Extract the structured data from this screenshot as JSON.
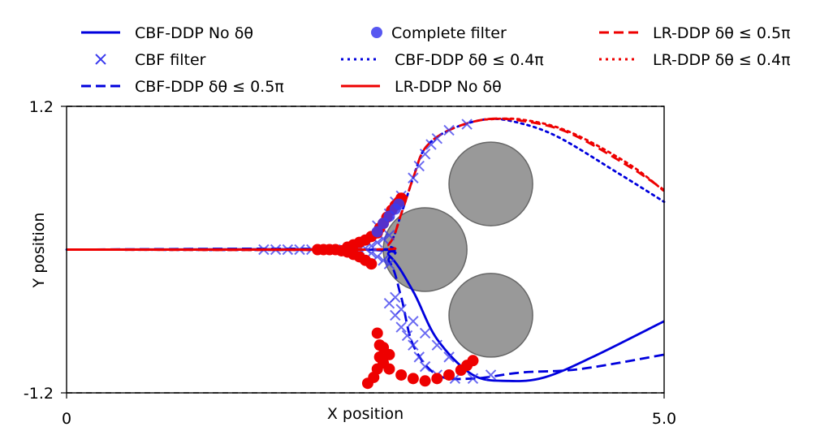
{
  "chart_data": {
    "type": "line",
    "title": "",
    "xlabel": "X position",
    "ylabel": "Y position",
    "xlim": [
      0,
      5.0
    ],
    "ylim": [
      -1.2,
      1.2
    ],
    "x_tick_labels": [
      "0",
      "5.0"
    ],
    "y_tick_labels": [
      "1.2",
      "-1.2"
    ],
    "grid": false,
    "legend_placement": "top",
    "colors": {
      "cbf": "#0000dd",
      "lr": "#ee0000",
      "obstacle": "#999999",
      "boundary": "#000000"
    },
    "boundaries": [
      1.2,
      -1.2
    ],
    "obstacles": [
      {
        "cx": 3.55,
        "cy": 0.55,
        "r": 0.35
      },
      {
        "cx": 3.0,
        "cy": 0.0,
        "r": 0.35
      },
      {
        "cx": 3.55,
        "cy": -0.55,
        "r": 0.35
      }
    ],
    "series": [
      {
        "name": "CBF-DDP No δθ",
        "color": "#0000dd",
        "style": "solid",
        "points": [
          [
            0,
            0
          ],
          [
            2.5,
            0
          ],
          [
            2.9,
            -0.02
          ],
          [
            2.5,
            0.0
          ]
        ]
      },
      {
        "name": "CBF filter",
        "color": "#3a3aee",
        "style": "marker-x"
      },
      {
        "name": "CBF-DDP δθ ≤ 0.5π",
        "color": "#0000dd",
        "style": "dashed"
      },
      {
        "name": "Complete filter",
        "color": "#3a3aee",
        "style": "marker-o"
      },
      {
        "name": "CBF-DDP δθ ≤ 0.4π",
        "color": "#0000dd",
        "style": "dotted"
      },
      {
        "name": "LR-DDP No δθ",
        "color": "#ee0000",
        "style": "solid"
      },
      {
        "name": "LR-DDP δθ ≤ 0.5π",
        "color": "#ee0000",
        "style": "dashed"
      },
      {
        "name": "LR-DDP δθ ≤ 0.4π",
        "color": "#ee0000",
        "style": "dotted"
      }
    ],
    "trajectories": {
      "cbf_solid": [
        [
          0,
          0
        ],
        [
          2.5,
          0
        ],
        [
          2.7,
          -0.05
        ],
        [
          2.9,
          -0.35
        ],
        [
          3.1,
          -0.75
        ],
        [
          3.4,
          -1.05
        ],
        [
          3.7,
          -1.1
        ],
        [
          4.0,
          -1.07
        ],
        [
          4.4,
          -0.9
        ],
        [
          5.0,
          -0.6
        ]
      ],
      "cbf_dashed": [
        [
          0,
          0
        ],
        [
          2.5,
          0
        ],
        [
          2.7,
          -0.1
        ],
        [
          2.8,
          -0.4
        ],
        [
          2.9,
          -0.8
        ],
        [
          3.1,
          -1.05
        ],
        [
          3.4,
          -1.08
        ],
        [
          3.8,
          -1.03
        ],
        [
          4.3,
          -1.0
        ],
        [
          5.0,
          -0.88
        ]
      ],
      "cbf_dotted": [
        [
          0,
          0
        ],
        [
          2.5,
          0
        ],
        [
          2.7,
          0.05
        ],
        [
          2.8,
          0.3
        ],
        [
          2.9,
          0.6
        ],
        [
          3.0,
          0.85
        ],
        [
          3.2,
          1.0
        ],
        [
          3.5,
          1.09
        ],
        [
          3.75,
          1.07
        ],
        [
          4.1,
          0.95
        ],
        [
          4.6,
          0.65
        ],
        [
          5.0,
          0.4
        ]
      ],
      "lr_dashed": [
        [
          0,
          0
        ],
        [
          2.5,
          0
        ],
        [
          2.7,
          0.05
        ],
        [
          2.8,
          0.3
        ],
        [
          2.9,
          0.6
        ],
        [
          3.0,
          0.85
        ],
        [
          3.2,
          1.0
        ],
        [
          3.5,
          1.09
        ],
        [
          3.8,
          1.08
        ],
        [
          4.2,
          0.98
        ],
        [
          4.7,
          0.7
        ],
        [
          5.0,
          0.5
        ]
      ],
      "lr_dotted": [
        [
          3.5,
          1.09
        ],
        [
          3.8,
          1.09
        ],
        [
          4.2,
          0.99
        ],
        [
          4.7,
          0.72
        ],
        [
          5.0,
          0.49
        ]
      ],
      "lr_solid": [
        [
          0,
          0
        ],
        [
          2.55,
          0
        ],
        [
          2.7,
          0.02
        ],
        [
          2.8,
          0.05
        ],
        [
          2.65,
          0.02
        ],
        [
          2.55,
          0.0
        ]
      ]
    },
    "cbf_filter_points": [
      [
        1.65,
        0
      ],
      [
        1.75,
        0
      ],
      [
        1.85,
        0
      ],
      [
        1.95,
        0
      ],
      [
        2.05,
        0
      ],
      [
        2.15,
        0
      ],
      [
        2.25,
        0
      ],
      [
        2.35,
        0
      ],
      [
        2.45,
        0.0
      ],
      [
        2.5,
        0.01
      ],
      [
        2.55,
        0.03
      ],
      [
        2.6,
        0.06
      ],
      [
        2.65,
        0.09
      ],
      [
        2.7,
        0.12
      ],
      [
        2.55,
        -0.03
      ],
      [
        2.6,
        -0.06
      ],
      [
        2.65,
        -0.09
      ],
      [
        2.7,
        -0.12
      ],
      [
        2.6,
        0.2
      ],
      [
        2.7,
        0.3
      ],
      [
        2.75,
        0.4
      ],
      [
        2.8,
        0.45
      ],
      [
        2.9,
        0.6
      ],
      [
        2.95,
        0.7
      ],
      [
        3.0,
        0.8
      ],
      [
        3.05,
        0.88
      ],
      [
        3.1,
        0.93
      ],
      [
        3.2,
        1.0
      ],
      [
        3.35,
        1.05
      ],
      [
        2.7,
        -0.45
      ],
      [
        2.75,
        -0.55
      ],
      [
        2.8,
        -0.65
      ],
      [
        2.85,
        -0.72
      ],
      [
        2.9,
        -0.8
      ],
      [
        2.95,
        -0.9
      ],
      [
        3.0,
        -0.98
      ],
      [
        3.1,
        -1.05
      ],
      [
        3.25,
        -1.08
      ],
      [
        3.4,
        -1.08
      ],
      [
        3.55,
        -1.05
      ],
      [
        2.75,
        -0.4
      ],
      [
        2.8,
        -0.5
      ],
      [
        2.9,
        -0.6
      ],
      [
        3.0,
        -0.7
      ],
      [
        3.1,
        -0.8
      ],
      [
        3.2,
        -0.9
      ]
    ],
    "complete_filter_points": [
      [
        2.6,
        0.15
      ],
      [
        2.65,
        0.22
      ],
      [
        2.7,
        0.28
      ],
      [
        2.75,
        0.34
      ],
      [
        2.78,
        0.38
      ]
    ],
    "lr_markers": [
      [
        2.1,
        0
      ],
      [
        2.15,
        0
      ],
      [
        2.2,
        0
      ],
      [
        2.25,
        0
      ],
      [
        2.3,
        -0.01
      ],
      [
        2.35,
        -0.02
      ],
      [
        2.4,
        -0.04
      ],
      [
        2.45,
        -0.06
      ],
      [
        2.5,
        -0.09
      ],
      [
        2.55,
        -0.12
      ],
      [
        2.35,
        0.02
      ],
      [
        2.4,
        0.04
      ],
      [
        2.45,
        0.06
      ],
      [
        2.5,
        0.08
      ],
      [
        2.55,
        0.11
      ],
      [
        2.6,
        0.14
      ],
      [
        2.62,
        0.18
      ],
      [
        2.65,
        0.22
      ],
      [
        2.68,
        0.27
      ],
      [
        2.72,
        0.33
      ],
      [
        2.75,
        0.37
      ],
      [
        2.78,
        0.4
      ],
      [
        2.8,
        0.43
      ],
      [
        2.6,
        -0.7
      ],
      [
        2.62,
        -0.8
      ],
      [
        2.62,
        -0.9
      ],
      [
        2.6,
        -1.0
      ],
      [
        2.57,
        -1.07
      ],
      [
        2.52,
        -1.12
      ],
      [
        2.65,
        -0.95
      ],
      [
        2.7,
        -1.0
      ],
      [
        2.8,
        -1.05
      ],
      [
        2.9,
        -1.08
      ],
      [
        3.0,
        -1.1
      ],
      [
        3.1,
        -1.08
      ],
      [
        3.2,
        -1.05
      ],
      [
        3.3,
        -1.01
      ],
      [
        3.35,
        -0.97
      ],
      [
        3.4,
        -0.93
      ],
      [
        2.65,
        -0.82
      ],
      [
        2.7,
        -0.88
      ]
    ]
  }
}
